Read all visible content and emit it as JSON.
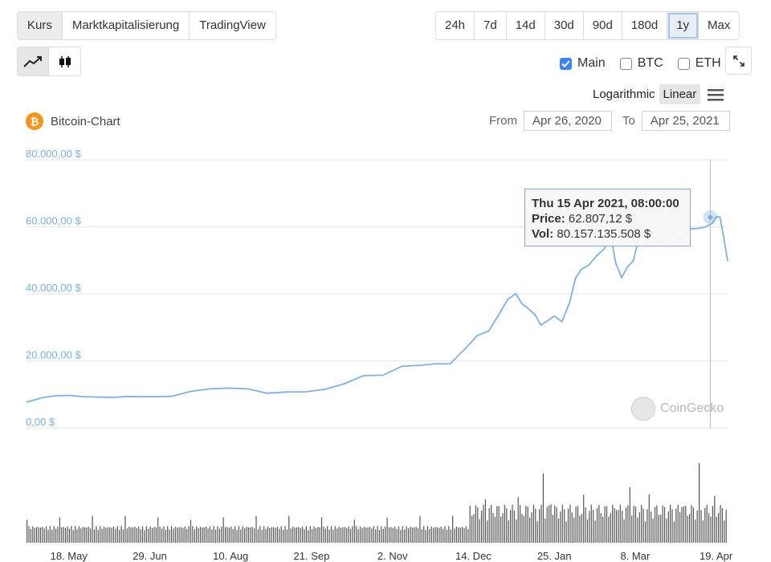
{
  "tabs": [
    {
      "label": "Kurs",
      "active": true
    },
    {
      "label": "Marktkapitalisierung",
      "active": false
    },
    {
      "label": "TradingView",
      "active": false
    }
  ],
  "ranges": [
    {
      "label": "24h",
      "active": false
    },
    {
      "label": "7d",
      "active": false
    },
    {
      "label": "14d",
      "active": false
    },
    {
      "label": "30d",
      "active": false
    },
    {
      "label": "90d",
      "active": false
    },
    {
      "label": "180d",
      "active": false
    },
    {
      "label": "1y",
      "active": true
    },
    {
      "label": "Max",
      "active": false
    }
  ],
  "chart_types": [
    {
      "icon": "line-chart-icon",
      "active": true
    },
    {
      "icon": "candlestick-icon",
      "active": false
    }
  ],
  "compare": [
    {
      "label": "Main",
      "checked": true
    },
    {
      "label": "BTC",
      "checked": false
    },
    {
      "label": "ETH",
      "checked": false
    }
  ],
  "scale": {
    "logarithmic": "Logarithmic",
    "linear": "Linear",
    "active": "Linear"
  },
  "coin": {
    "title": "Bitcoin-Chart",
    "logo": "₿"
  },
  "date_range": {
    "from_label": "From",
    "from": "Apr 26, 2020",
    "to_label": "To",
    "to": "Apr 25, 2021"
  },
  "tooltip": {
    "date": "Thu 15 Apr 2021, 08:00:00",
    "price_label": "Price:",
    "price": "62.807,12 $",
    "vol_label": "Vol:",
    "vol": "80.157.135.508 $"
  },
  "watermark": "CoinGecko",
  "colors": {
    "line": "#7fb0e0",
    "axis_text": "#7ab0e0",
    "volume": "#555555",
    "grid": "#e6e6e6"
  },
  "chart_data": {
    "type": "line",
    "ylim": [
      0,
      80000
    ],
    "y_ticks": [
      "80.000,00 $",
      "60.000,00 $",
      "40.000,00 $",
      "20.000,00 $",
      "0,00 $"
    ],
    "x_ticks": [
      "18. May",
      "29. Jun",
      "10. Aug",
      "21. Sep",
      "2. Nov",
      "14. Dec",
      "25. Jan",
      "8. Mar",
      "19. Apr"
    ],
    "x_tick_days": [
      22,
      64,
      106,
      148,
      190,
      232,
      274,
      316,
      358
    ],
    "total_days": 364,
    "series": [
      {
        "x": [
          0,
          8,
          15,
          22,
          30,
          38,
          45,
          52,
          60,
          68,
          75,
          85,
          95,
          105,
          115,
          125,
          135,
          145,
          155,
          165,
          175,
          185,
          195,
          205,
          212,
          220,
          228,
          234,
          240,
          245,
          250,
          254,
          257,
          260,
          264,
          267,
          270,
          274,
          278,
          282,
          285,
          288,
          292,
          296,
          300,
          303,
          306,
          309,
          312,
          315,
          318,
          321,
          324,
          328,
          332,
          336,
          340,
          344,
          348,
          352,
          356,
          358,
          360,
          362,
          364
        ],
        "y": [
          7700,
          8900,
          9500,
          9700,
          9400,
          9300,
          9100,
          9300,
          9200,
          9300,
          9500,
          11000,
          11700,
          11800,
          11500,
          10300,
          10800,
          10900,
          11600,
          13100,
          15400,
          15600,
          18500,
          18900,
          19300,
          19100,
          23500,
          27300,
          29000,
          34000,
          38800,
          40000,
          36800,
          35500,
          33800,
          31000,
          32100,
          33400,
          31400,
          37000,
          44500,
          47700,
          49200,
          51500,
          53000,
          57500,
          48800,
          45200,
          48600,
          50100,
          56600,
          57900,
          58200,
          55300,
          57000,
          58900,
          55800,
          58700,
          59000,
          60100,
          61700,
          63500,
          62800,
          56200,
          49300
        ]
      }
    ],
    "volume_days": 364,
    "volume_max": 110000000000,
    "tooltip_day": 355
  }
}
